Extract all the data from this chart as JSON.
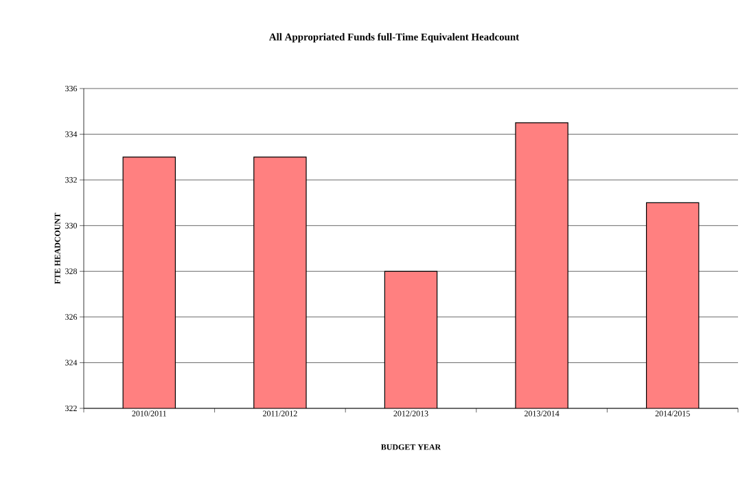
{
  "chart_data": {
    "type": "bar",
    "title": "All Appropriated Funds full-Time Equivalent Headcount",
    "xlabel": "BUDGET YEAR",
    "ylabel": "FTE HEADCOUNT",
    "categories": [
      "2010/2011",
      "2011/2012",
      "2012/2013",
      "2013/2014",
      "2014/2015"
    ],
    "values": [
      333,
      333,
      328,
      334.5,
      331
    ],
    "color": "#ff8080",
    "ylim": [
      322,
      336
    ],
    "yticks": [
      322,
      324,
      326,
      328,
      330,
      332,
      334,
      336
    ],
    "grid": "y"
  }
}
